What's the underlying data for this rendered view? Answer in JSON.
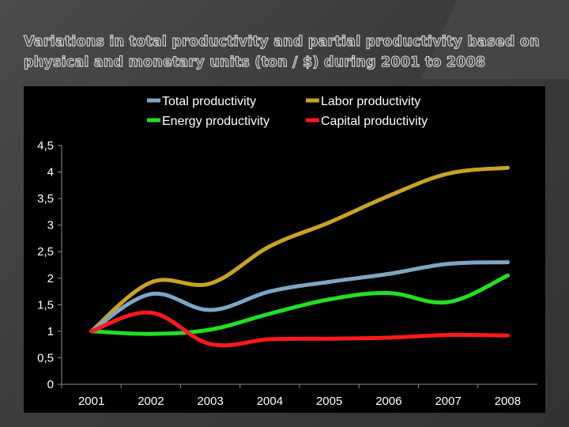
{
  "slide": {
    "title": "Variations in total productivity and partial productivity based on physical and monetary units (ton / $) during 2001 to 2008"
  },
  "chart_data": {
    "type": "line",
    "title": "",
    "xlabel": "",
    "ylabel": "",
    "categories": [
      "2001",
      "2002",
      "2003",
      "2004",
      "2005",
      "2006",
      "2007",
      "2008"
    ],
    "ylim": [
      0,
      4.5
    ],
    "yticks": [
      "0",
      "0,5",
      "1",
      "1,5",
      "2",
      "2,5",
      "3",
      "3,5",
      "4",
      "4,5"
    ],
    "grid": false,
    "legend_placement": "top",
    "smooth": true,
    "series": [
      {
        "name": "Total productivity",
        "color": "#7ea6c4",
        "values": [
          1.0,
          1.7,
          1.4,
          1.75,
          1.93,
          2.08,
          2.27,
          2.3
        ]
      },
      {
        "name": "Labor productivity",
        "color": "#c9a227",
        "values": [
          1.0,
          1.92,
          1.9,
          2.6,
          3.05,
          3.55,
          3.97,
          4.08
        ]
      },
      {
        "name": "Energy productivity",
        "color": "#22e022",
        "values": [
          1.0,
          0.95,
          1.03,
          1.33,
          1.6,
          1.72,
          1.55,
          2.05
        ]
      },
      {
        "name": "Capital productivity",
        "color": "#ff1a1a",
        "values": [
          1.0,
          1.35,
          0.76,
          0.85,
          0.86,
          0.88,
          0.93,
          0.92
        ]
      }
    ]
  }
}
